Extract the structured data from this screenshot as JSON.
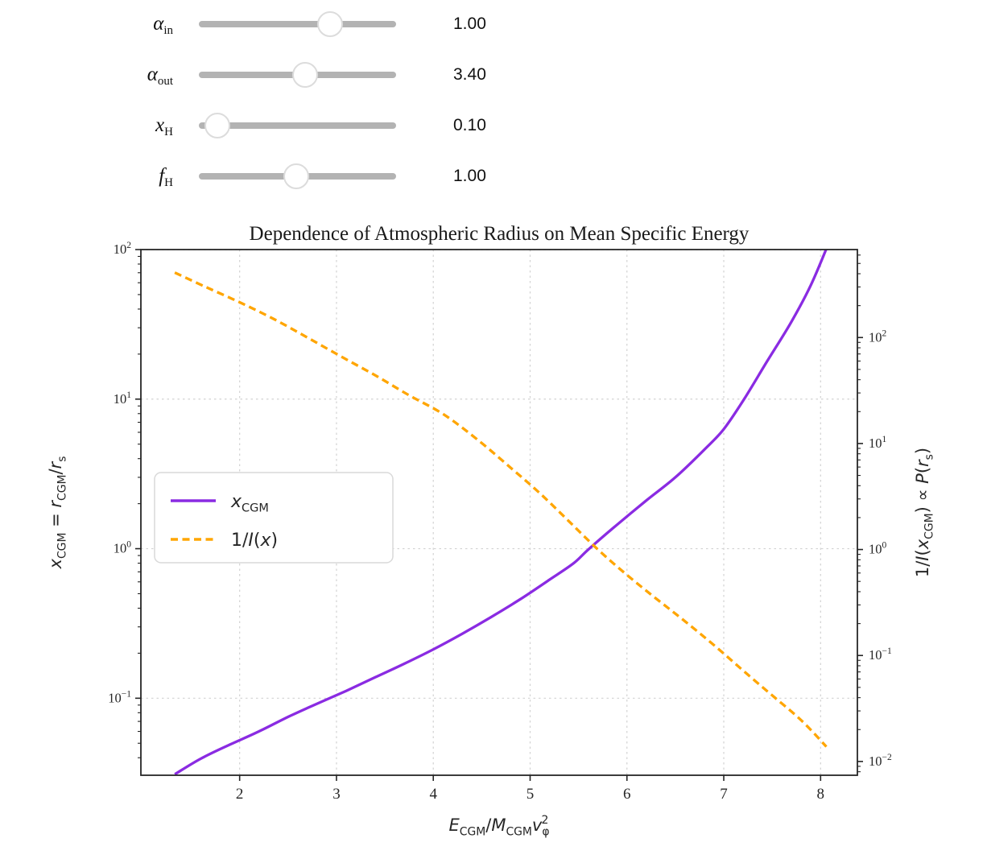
{
  "sliders": {
    "rows": [
      {
        "label": {
          "symbol": "α",
          "sub": "in"
        },
        "value_text": "1.00",
        "fraction": 0.665
      },
      {
        "label": {
          "symbol": "α",
          "sub": "out"
        },
        "value_text": "3.40",
        "fraction": 0.539
      },
      {
        "label": {
          "symbol": "x",
          "sub": "H"
        },
        "value_text": "0.10",
        "fraction": 0.094
      },
      {
        "label": {
          "symbol": "f",
          "sub": "H"
        },
        "value_text": "1.00",
        "fraction": 0.494
      }
    ],
    "track_color": "#b3b3b3",
    "handle_color": "#ffffff"
  },
  "chart_data": {
    "type": "line",
    "title": "Dependence of Atmospheric Radius on Mean Specific Energy",
    "xlabel": "E_CGM/M_CGM v_φ^2",
    "ylabel_left": "x_CGM = r_CGM/r_s",
    "ylabel_right": "1/I(x_CGM) ∝ P(r_s)",
    "x_range": [
      0.98,
      8.38
    ],
    "x_ticks": [
      2,
      3,
      4,
      5,
      6,
      7,
      8
    ],
    "y_left_log_range": [
      -1.515,
      2.0
    ],
    "y_right_log_range": [
      -2.13,
      2.83
    ],
    "y_left_ticks": [
      {
        "exp": "2",
        "value": 100
      },
      {
        "exp": "1",
        "value": 10
      },
      {
        "exp": "0",
        "value": 1
      },
      {
        "exp": "−1",
        "value": 0.1
      }
    ],
    "y_right_ticks": [
      {
        "exp": "2",
        "value": 100
      },
      {
        "exp": "1",
        "value": 10
      },
      {
        "exp": "0",
        "value": 1
      },
      {
        "exp": "−1",
        "value": 0.1
      },
      {
        "exp": "−2",
        "value": 0.01
      }
    ],
    "grid": true,
    "grid_color": "#d2d2d2",
    "axis_color": "#262626",
    "legend_position": "center-left",
    "xlabel_rich": [
      {
        "t": "E",
        "i": 1
      },
      {
        "t": "CGM",
        "sub": 1
      },
      {
        "t": "/"
      },
      {
        "t": "M",
        "i": 1
      },
      {
        "t": "CGM",
        "sub": 1
      },
      {
        "t": "v",
        "i": 1
      },
      {
        "t": "φ",
        "sub": 1
      },
      {
        "t": "2",
        "sup": 1,
        "dx": -10
      }
    ],
    "ylabel_left_rich": [
      {
        "t": "x",
        "i": 1
      },
      {
        "t": "CGM",
        "sub": 1
      },
      {
        "t": " = "
      },
      {
        "t": "r",
        "i": 1
      },
      {
        "t": "CGM",
        "sub": 1
      },
      {
        "t": "/"
      },
      {
        "t": "r",
        "i": 1
      },
      {
        "t": "s",
        "sub": 1
      }
    ],
    "ylabel_right_rich": [
      {
        "t": "1/"
      },
      {
        "t": "I",
        "i": 1
      },
      {
        "t": "("
      },
      {
        "t": "x",
        "i": 1
      },
      {
        "t": "CGM",
        "sub": 1
      },
      {
        "t": ") ∝ "
      },
      {
        "t": "P",
        "i": 1
      },
      {
        "t": "("
      },
      {
        "t": "r",
        "i": 1
      },
      {
        "t": "s",
        "sub": 1
      },
      {
        "t": ")"
      }
    ],
    "legend": [
      {
        "label": "x_CGM",
        "rich": [
          {
            "t": "x",
            "i": 1
          },
          {
            "t": "CGM",
            "sub": 1
          }
        ],
        "color": "#8a2be2",
        "dash": "solid"
      },
      {
        "label": "1/I(x)",
        "rich": [
          {
            "t": "1/"
          },
          {
            "t": "I",
            "i": 1
          },
          {
            "t": "("
          },
          {
            "t": "x",
            "i": 1
          },
          {
            "t": ")"
          }
        ],
        "color": "#ffa500",
        "dash": "dashed"
      }
    ],
    "series": [
      {
        "name": "x_CGM",
        "axis": "left",
        "color": "#8a2be2",
        "style": "solid",
        "points": [
          [
            1.33,
            0.031
          ],
          [
            1.6,
            0.0395
          ],
          [
            1.9,
            0.049
          ],
          [
            2.2,
            0.06
          ],
          [
            2.5,
            0.075
          ],
          [
            2.8,
            0.092
          ],
          [
            3.1,
            0.112
          ],
          [
            3.4,
            0.138
          ],
          [
            3.7,
            0.17
          ],
          [
            4.0,
            0.212
          ],
          [
            4.3,
            0.27
          ],
          [
            4.6,
            0.35
          ],
          [
            4.9,
            0.46
          ],
          [
            5.2,
            0.62
          ],
          [
            5.45,
            0.8
          ],
          [
            5.61,
            1.0
          ],
          [
            5.9,
            1.45
          ],
          [
            6.2,
            2.1
          ],
          [
            6.5,
            3.0
          ],
          [
            6.8,
            4.6
          ],
          [
            7.0,
            6.3
          ],
          [
            7.21,
            10
          ],
          [
            7.45,
            18
          ],
          [
            7.7,
            33
          ],
          [
            7.9,
            58
          ],
          [
            8.07,
            105
          ]
        ]
      },
      {
        "name": "1/I(x)",
        "axis": "right",
        "color": "#ffa500",
        "style": "dashed",
        "points": [
          [
            1.33,
            410
          ],
          [
            1.65,
            300
          ],
          [
            2.0,
            215
          ],
          [
            2.35,
            150
          ],
          [
            2.7,
            100
          ],
          [
            3.05,
            66
          ],
          [
            3.4,
            44
          ],
          [
            3.75,
            28.5
          ],
          [
            4.1,
            19
          ],
          [
            4.45,
            11
          ],
          [
            4.8,
            5.9
          ],
          [
            5.1,
            3.4
          ],
          [
            5.4,
            1.85
          ],
          [
            5.7,
            1.0
          ],
          [
            6.0,
            0.575
          ],
          [
            6.3,
            0.345
          ],
          [
            6.6,
            0.21
          ],
          [
            6.9,
            0.125
          ],
          [
            7.2,
            0.072
          ],
          [
            7.5,
            0.042
          ],
          [
            7.8,
            0.0245
          ],
          [
            8.06,
            0.0138
          ]
        ]
      }
    ]
  }
}
